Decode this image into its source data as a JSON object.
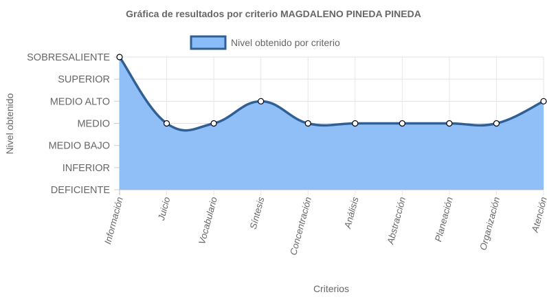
{
  "chart_data": {
    "type": "area",
    "title": "Gráfica de resultados por criterio MAGDALENO PINEDA PINEDA",
    "xlabel": "Criterios",
    "ylabel": "Nivel obtenido",
    "categories": [
      "Información",
      "Juicio",
      "Vocabulario",
      "Síntesis",
      "Concentración",
      "Análisis",
      "Abstracción",
      "Planeación",
      "Organización",
      "Atención"
    ],
    "y_levels": [
      "DEFICIENTE",
      "INFERIOR",
      "MEDIO BAJO",
      "MEDIO",
      "MEDIO ALTO",
      "SUPERIOR",
      "SOBRESALIENTE"
    ],
    "ylim": [
      0,
      6
    ],
    "series": [
      {
        "name": "Nivel obtenido por criterio",
        "values": [
          6,
          3,
          3,
          4,
          3,
          3,
          3,
          3,
          3,
          4
        ]
      }
    ],
    "legend_position": "top",
    "grid": true,
    "colors": {
      "fill": "#8abcf7",
      "line": "#2f5f93",
      "grid": "#dddddd",
      "text": "#666666"
    }
  }
}
